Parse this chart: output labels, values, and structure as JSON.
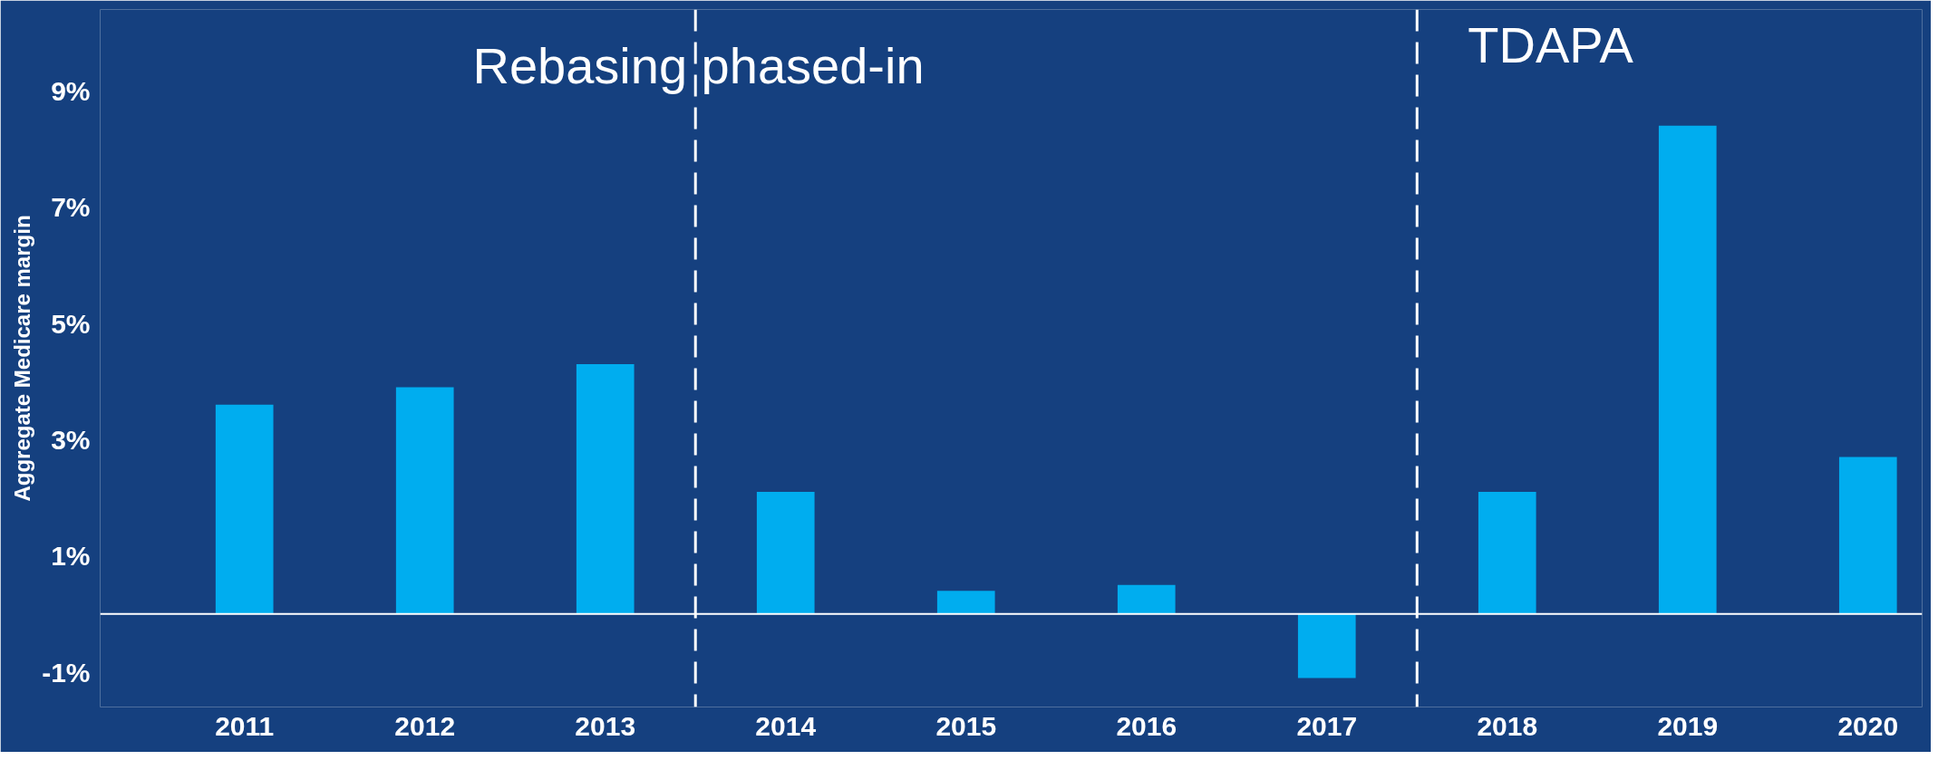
{
  "chart_data": {
    "type": "bar",
    "ylabel": "Aggregate Medicare margin",
    "x": [
      2011,
      2012,
      2013,
      2014,
      2015,
      2016,
      2017,
      2018,
      2019,
      2020
    ],
    "values": [
      3.6,
      3.9,
      4.3,
      2.1,
      0.4,
      0.5,
      -1.1,
      2.1,
      8.4,
      2.7
    ],
    "color": "#00adef",
    "xlim": [
      2010.2,
      2020.3
    ],
    "xticks": [
      2011,
      2012,
      2013,
      2014,
      2015,
      2016,
      2017,
      2018,
      2019,
      2020
    ],
    "ylim": [
      -1.6,
      10.4
    ],
    "yticks": [
      {
        "value": -1,
        "label": "-1%"
      },
      {
        "value": 1,
        "label": "1%"
      },
      {
        "value": 3,
        "label": "3%"
      },
      {
        "value": 5,
        "label": "5%"
      },
      {
        "value": 7,
        "label": "7%"
      },
      {
        "value": 9,
        "label": "9%"
      }
    ],
    "ref_lines": [
      {
        "axis": "y",
        "value": 0,
        "color": "#ffffff",
        "line_style": "solid"
      },
      {
        "axis": "x",
        "value": 2013.5,
        "color": "#ffffff",
        "line_style": "dashed"
      },
      {
        "axis": "x",
        "value": 2017.5,
        "color": "#ffffff",
        "line_style": "dashed"
      }
    ],
    "annotations": [
      "Rebasing phased-in",
      "TDAPA"
    ],
    "grid": false
  }
}
